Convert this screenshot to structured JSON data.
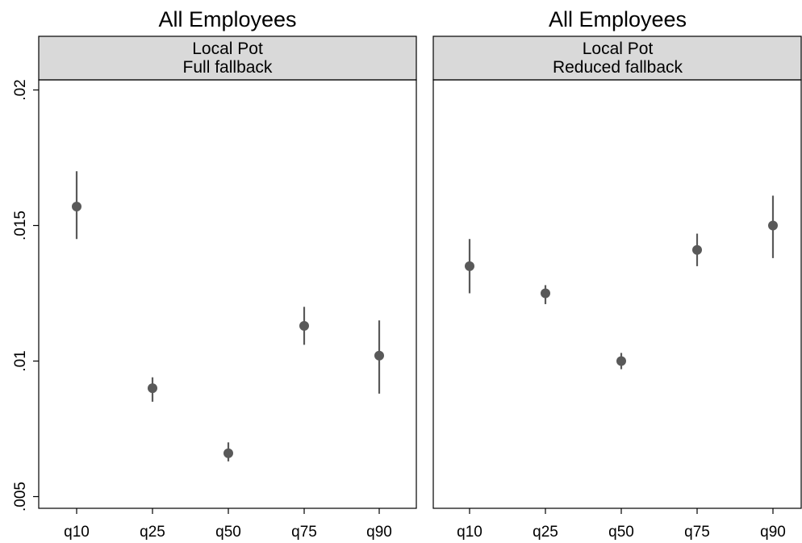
{
  "chart_data": [
    {
      "type": "scatter",
      "title": "All Employees",
      "strip": [
        "Local Pot",
        "Full fallback"
      ],
      "categories": [
        "q10",
        "q25",
        "q50",
        "q75",
        "q90"
      ],
      "y_ticks": [
        ".005",
        ".01",
        ".015",
        ".02"
      ],
      "ylim": [
        0.005,
        0.02
      ],
      "grid": false,
      "series": [
        {
          "values": [
            0.0157,
            0.009,
            0.0066,
            0.0113,
            0.0102
          ],
          "ci_low": [
            0.0145,
            0.0085,
            0.0063,
            0.0106,
            0.0088
          ],
          "ci_high": [
            0.017,
            0.0094,
            0.007,
            0.012,
            0.0115
          ]
        }
      ],
      "colors": {
        "marker": "#595959",
        "strip": "#d9d9d9"
      }
    },
    {
      "type": "scatter",
      "title": "All Employees",
      "strip": [
        "Local Pot",
        "Reduced fallback"
      ],
      "categories": [
        "q10",
        "q25",
        "q50",
        "q75",
        "q90"
      ],
      "y_ticks": [
        ".005",
        ".01",
        ".015",
        ".02"
      ],
      "ylim": [
        0.005,
        0.02
      ],
      "grid": false,
      "series": [
        {
          "values": [
            0.0135,
            0.0125,
            0.01,
            0.0141,
            0.015
          ],
          "ci_low": [
            0.0125,
            0.0121,
            0.0097,
            0.0135,
            0.0138
          ],
          "ci_high": [
            0.0145,
            0.0128,
            0.0103,
            0.0147,
            0.0161
          ]
        }
      ],
      "colors": {
        "marker": "#595959",
        "strip": "#d9d9d9"
      }
    }
  ]
}
